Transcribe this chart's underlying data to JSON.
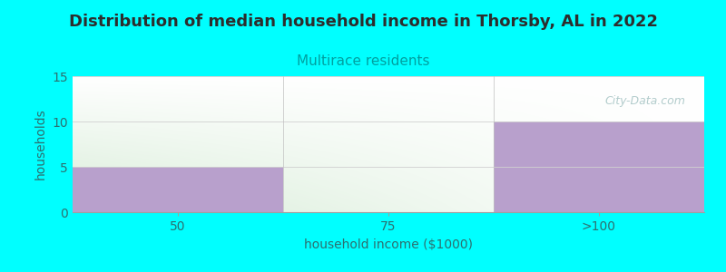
{
  "title": "Distribution of median household income in Thorsby, AL in 2022",
  "subtitle": "Multirace residents",
  "categories": [
    "50",
    "75",
    ">100"
  ],
  "values": [
    5,
    0,
    10
  ],
  "bar_color": "#B8A0CC",
  "bar_alpha": 1.0,
  "xlabel": "household income ($1000)",
  "ylabel": "households",
  "ylim": [
    0,
    15
  ],
  "yticks": [
    0,
    5,
    10,
    15
  ],
  "background_color": "#00FFFF",
  "plot_bg_green": [
    0.847,
    0.929,
    0.847
  ],
  "plot_bg_white": [
    1.0,
    1.0,
    1.0
  ],
  "title_fontsize": 13,
  "title_color": "#2D2D2D",
  "subtitle_fontsize": 11,
  "subtitle_color": "#00A0A0",
  "axis_label_color": "#2D7070",
  "tick_color": "#2D7070",
  "watermark": "City-Data.com",
  "watermark_color": "#A0C0C0",
  "n_cats": 3,
  "bar_edges": [
    0,
    1,
    2,
    3
  ]
}
